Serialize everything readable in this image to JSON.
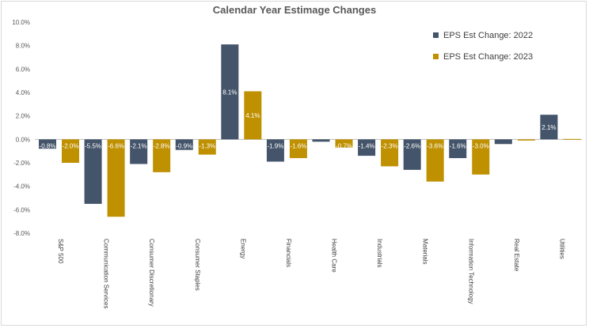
{
  "chart_data": {
    "type": "bar",
    "title": "Calendar Year Estimage Changes",
    "categories": [
      "S&P 500",
      "Communication Services",
      "Consumer Discretionary",
      "Consumer Staples",
      "Energy",
      "Financials",
      "Health Care",
      "Industrials",
      "Materials",
      "Information Technology",
      "Real Estate",
      "Utilities"
    ],
    "series": [
      {
        "name": "EPS Est Change: 2022",
        "color": "#44546a",
        "values": [
          -0.8,
          -5.5,
          -2.1,
          -0.9,
          8.1,
          -1.9,
          -0.2,
          -1.4,
          -2.6,
          -1.6,
          -0.4,
          2.1
        ],
        "labels": [
          "-0.8%",
          "-5.5%",
          "-2.1%",
          "-0.9%",
          "8.1%",
          "-1.9%",
          "",
          "-1.4%",
          "-2.6%",
          "-1.6%",
          "",
          "2.1%"
        ]
      },
      {
        "name": "EPS Est Change: 2023",
        "color": "#bf9000",
        "values": [
          -2.0,
          -6.6,
          -2.8,
          -1.3,
          4.1,
          -1.6,
          -0.7,
          -2.3,
          -3.6,
          -3.0,
          -0.1,
          0.0
        ],
        "labels": [
          "-2.0%",
          "-6.6%",
          "-2.8%",
          "-1.3%",
          "4.1%",
          "-1.6%",
          "-0.7%",
          "-2.3%",
          "-3.6%",
          "-3.0%",
          "",
          ""
        ]
      }
    ],
    "ylim": [
      -8,
      10
    ],
    "yticks": [
      "10.0%",
      "8.0%",
      "6.0%",
      "4.0%",
      "2.0%",
      "0.0%",
      "-2.0%",
      "-4.0%",
      "-6.0%",
      "-8.0%"
    ],
    "ytick_values": [
      10,
      8,
      6,
      4,
      2,
      0,
      -2,
      -4,
      -6,
      -8
    ],
    "grid": false,
    "legend_position": "top-right"
  }
}
